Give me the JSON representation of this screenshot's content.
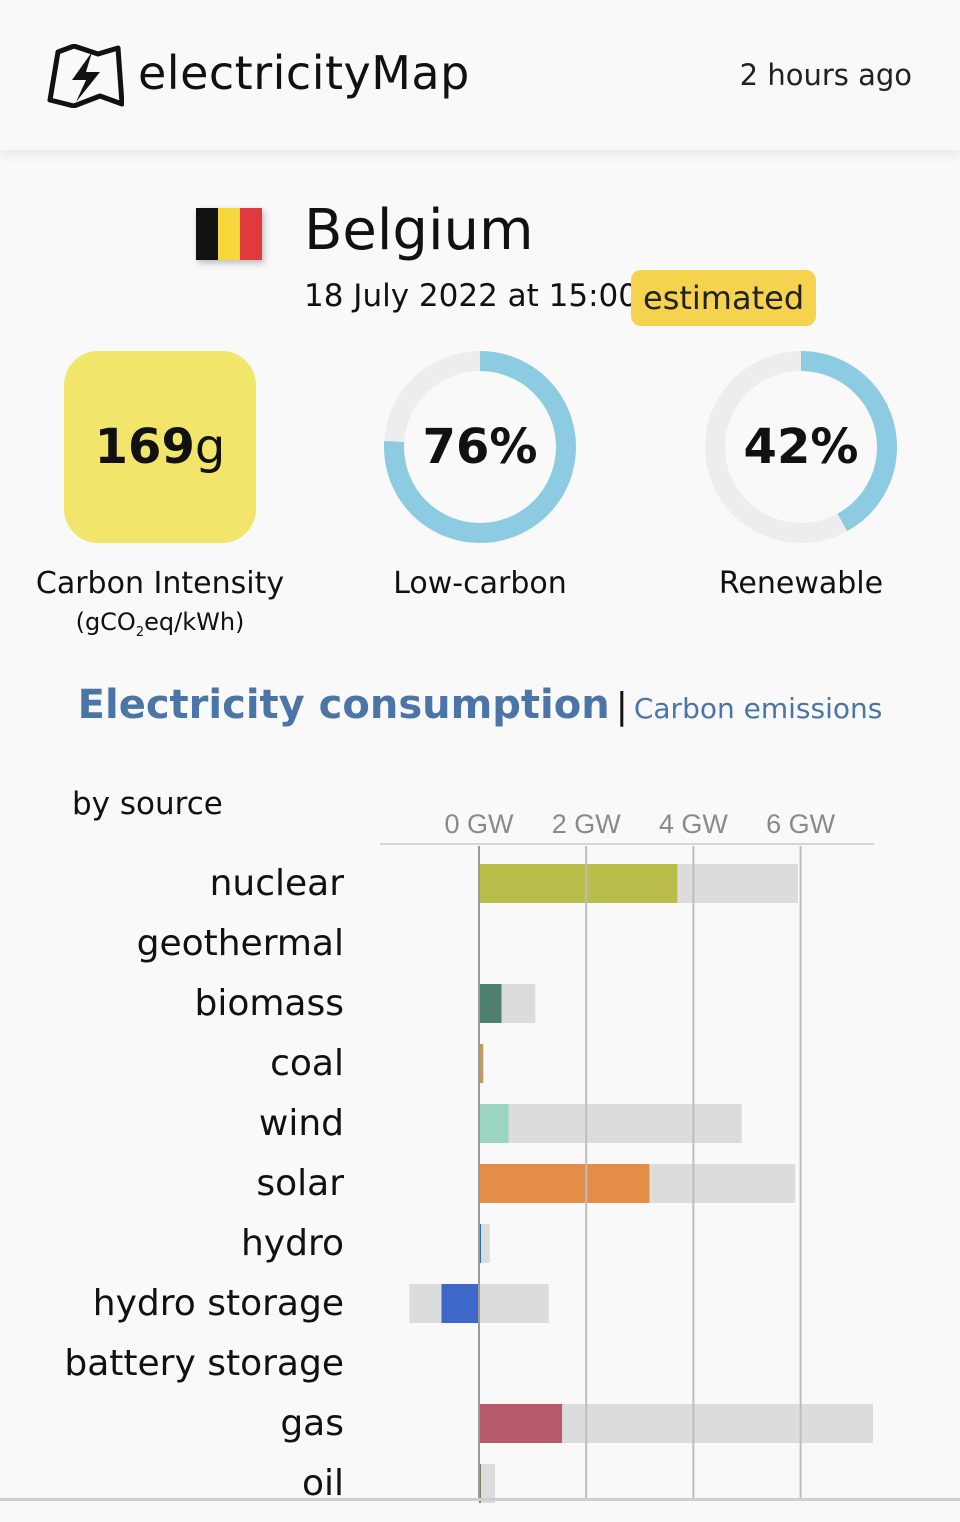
{
  "app": {
    "name": "electricityMap",
    "updated": "2 hours ago"
  },
  "zone": {
    "name": "Belgium",
    "datetime": "18 July 2022 at 15:00",
    "badge": "estimated",
    "flag_colors": [
      "#111111",
      "#f5d63b",
      "#e03a3e"
    ]
  },
  "metrics": {
    "carbon_intensity": {
      "value": "169",
      "unit": "g",
      "label": "Carbon Intensity",
      "sub_pre": "(gCO",
      "sub_sub": "2",
      "sub_post": "eq/kWh)",
      "color": "#f1e56b"
    },
    "low_carbon": {
      "value": "76%",
      "fraction": 0.76,
      "label": "Low-carbon"
    },
    "renewable": {
      "value": "42%",
      "fraction": 0.42,
      "label": "Renewable"
    },
    "ring_color": "#8ccbe2",
    "ring_track_color": "#ededed"
  },
  "tabs": {
    "active": "Electricity consumption",
    "separator": "|",
    "other": "Carbon emissions"
  },
  "section_label": "by source",
  "chart_data": {
    "type": "bar",
    "orientation": "horizontal",
    "xlabel": "",
    "ylabel": "",
    "xlim": [
      -1.3,
      7.35
    ],
    "ticks": [
      0,
      2,
      4,
      6
    ],
    "tick_labels": [
      "0 GW",
      "2 GW",
      "4 GW",
      "6 GW"
    ],
    "grid": true,
    "categories": [
      "nuclear",
      "geothermal",
      "biomass",
      "coal",
      "wind",
      "solar",
      "hydro",
      "hydro storage",
      "battery storage",
      "gas",
      "oil"
    ],
    "series": [
      {
        "values": [
          3.7,
          0,
          0.42,
          0.08,
          0.55,
          3.18,
          0.02,
          -0.7,
          0,
          1.55,
          0.01
        ],
        "colors": [
          "#b9be4b",
          "#000000",
          "#4f7f70",
          "#bd9a61",
          "#9cd4c3",
          "#e48d47",
          "#2772b2",
          "#3d68c9",
          "#000000",
          "#b85a6b",
          "#867d66"
        ]
      },
      {
        "values": [
          5.95,
          0,
          1.05,
          0.05,
          4.9,
          5.9,
          0.2,
          1.3,
          0,
          7.35,
          0.3
        ],
        "min_values": [
          0,
          0,
          0,
          0,
          0,
          0,
          0,
          -1.3,
          0,
          0,
          0
        ],
        "color": "#dcdcdc"
      }
    ]
  }
}
